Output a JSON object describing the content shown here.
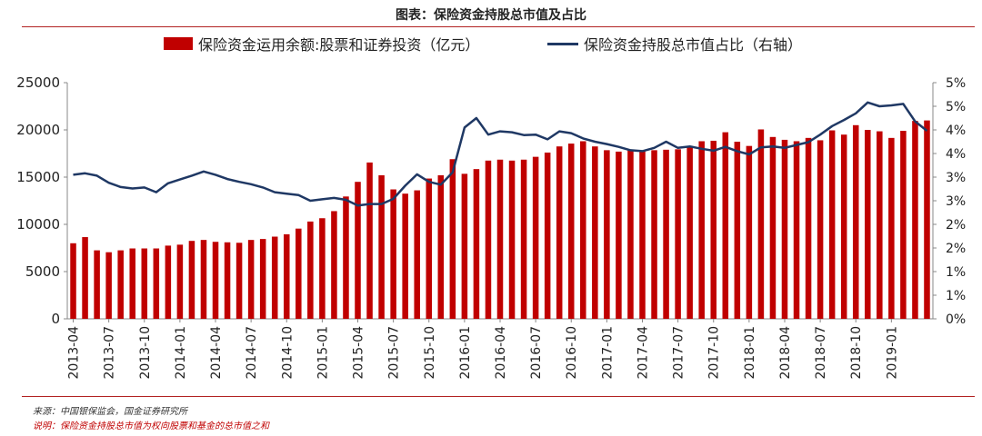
{
  "chart_data": {
    "type": "bar",
    "title": "图表：保险资金持股总市值及占比",
    "series": [
      {
        "name": "保险资金运用余额:股票和证券投资（亿元）",
        "type": "bar",
        "axis": "left",
        "color": "#c00000",
        "values": [
          8000,
          8650,
          7250,
          7050,
          7250,
          7450,
          7450,
          7450,
          7750,
          7850,
          8250,
          8350,
          8150,
          8100,
          8050,
          8350,
          8450,
          8700,
          8950,
          9550,
          10300,
          10650,
          11400,
          12950,
          14500,
          16550,
          15200,
          13700,
          13250,
          13600,
          14850,
          15200,
          16900,
          15350,
          15850,
          16750,
          16850,
          16750,
          16850,
          17150,
          17600,
          18250,
          18550,
          18800,
          18250,
          17850,
          17700,
          17850,
          17800,
          17850,
          17900,
          17950,
          18250,
          18800,
          18850,
          19750,
          18750,
          18300,
          20050,
          19250,
          18950,
          18800,
          19150,
          18900,
          19950,
          19500,
          20500,
          20000,
          19850,
          19150,
          19900,
          20950,
          21000
        ]
      },
      {
        "name": "保险资金持股总市值占比（右轴）",
        "type": "line",
        "axis": "right",
        "color": "#1f3864",
        "values": [
          3.05,
          3.08,
          3.03,
          2.88,
          2.79,
          2.76,
          2.78,
          2.68,
          2.87,
          2.95,
          3.03,
          3.12,
          3.05,
          2.96,
          2.9,
          2.85,
          2.78,
          2.68,
          2.65,
          2.62,
          2.5,
          2.53,
          2.56,
          2.52,
          2.4,
          2.43,
          2.43,
          2.54,
          2.82,
          3.06,
          2.9,
          2.84,
          3.1,
          4.05,
          4.25,
          3.9,
          3.97,
          3.95,
          3.89,
          3.9,
          3.8,
          3.97,
          3.93,
          3.82,
          3.75,
          3.7,
          3.64,
          3.57,
          3.55,
          3.62,
          3.75,
          3.62,
          3.65,
          3.6,
          3.56,
          3.64,
          3.55,
          3.48,
          3.63,
          3.65,
          3.62,
          3.68,
          3.74,
          3.9,
          4.08,
          4.21,
          4.35,
          4.58,
          4.5,
          4.52,
          4.55,
          4.18,
          3.98
        ]
      }
    ],
    "x_ticks": [
      "2013-04",
      "2013-07",
      "2013-10",
      "2014-01",
      "2014-04",
      "2014-07",
      "2014-10",
      "2015-01",
      "2015-04",
      "2015-07",
      "2015-10",
      "2016-01",
      "2016-04",
      "2016-07",
      "2016-10",
      "2017-01",
      "2017-04",
      "2017-07",
      "2017-10",
      "2018-01",
      "2018-04",
      "2018-07",
      "2018-10",
      "2019-01"
    ],
    "ylim_left": [
      0,
      25000
    ],
    "yticks_left": [
      "0",
      "5000",
      "10000",
      "15000",
      "20000",
      "25000"
    ],
    "ylim_right": [
      0,
      5
    ],
    "yticks_right": [
      "0%",
      "1%",
      "1%",
      "2%",
      "2%",
      "3%",
      "3%",
      "4%",
      "4%",
      "5%"
    ],
    "grid": false,
    "legend_position": "top"
  },
  "notes": {
    "source": "来源：中国银保监会，国金证券研究所",
    "description": "说明：保险资金持股总市值为权向股票和基金的总市值之和"
  }
}
